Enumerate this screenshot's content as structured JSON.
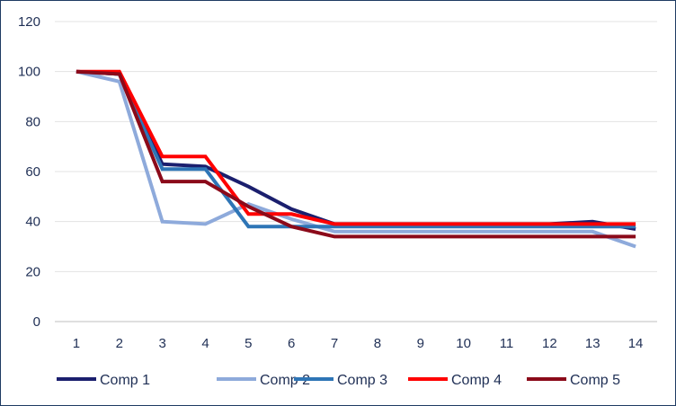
{
  "chart_data": {
    "type": "line",
    "title": "",
    "xlabel": "",
    "ylabel": "",
    "x": [
      1,
      2,
      3,
      4,
      5,
      6,
      7,
      8,
      9,
      10,
      11,
      12,
      13,
      14
    ],
    "x_tick_labels": [
      "1",
      "2",
      "3",
      "4",
      "5",
      "6",
      "7",
      "8",
      "9",
      "10",
      "11",
      "12",
      "13",
      "14"
    ],
    "ylim": [
      0,
      120
    ],
    "y_ticks": [
      0,
      20,
      40,
      60,
      80,
      100,
      120
    ],
    "grid": true,
    "legend_position": "bottom",
    "series": [
      {
        "name": "Comp 1",
        "color": "#1b1f6e",
        "values": [
          100,
          99,
          63,
          62,
          54,
          45,
          39,
          39,
          39,
          39,
          39,
          39,
          40,
          37
        ]
      },
      {
        "name": "Comp 2",
        "color": "#8eaadb",
        "values": [
          100,
          96,
          40,
          39,
          47,
          41,
          36,
          36,
          36,
          36,
          36,
          36,
          36,
          30
        ]
      },
      {
        "name": "Comp 3",
        "color": "#2e75b6",
        "values": [
          100,
          99,
          61,
          61,
          38,
          38,
          38,
          38,
          38,
          38,
          38,
          38,
          38,
          38
        ]
      },
      {
        "name": "Comp 4",
        "color": "#ff0000",
        "values": [
          100,
          100,
          66,
          66,
          43,
          43,
          39,
          39,
          39,
          39,
          39,
          39,
          39,
          39
        ]
      },
      {
        "name": "Comp 5",
        "color": "#8b0a1a",
        "values": [
          100,
          99,
          56,
          56,
          46,
          38,
          34,
          34,
          34,
          34,
          34,
          34,
          34,
          34
        ]
      }
    ]
  }
}
